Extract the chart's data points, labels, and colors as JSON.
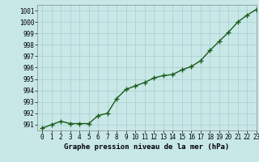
{
  "x": [
    0,
    1,
    2,
    3,
    4,
    5,
    6,
    7,
    8,
    9,
    10,
    11,
    12,
    13,
    14,
    15,
    16,
    17,
    18,
    19,
    20,
    21,
    22,
    23
  ],
  "y": [
    990.7,
    991.0,
    991.3,
    991.1,
    991.1,
    991.1,
    991.8,
    992.0,
    993.3,
    994.1,
    994.4,
    994.7,
    995.1,
    995.3,
    995.4,
    995.8,
    996.1,
    996.6,
    997.5,
    998.3,
    999.1,
    1000.0,
    1000.6,
    1001.1
  ],
  "line_color": "#1a5c1a",
  "marker_color": "#1a5c1a",
  "bg_color": "#c8e8e8",
  "grid_color": "#aacccc",
  "xlabel": "Graphe pression niveau de la mer (hPa)",
  "xlim": [
    -0.5,
    23
  ],
  "ylim": [
    990.5,
    1001.5
  ],
  "yticks": [
    991,
    992,
    993,
    994,
    995,
    996,
    997,
    998,
    999,
    1000,
    1001
  ],
  "xticks": [
    0,
    1,
    2,
    3,
    4,
    5,
    6,
    7,
    8,
    9,
    10,
    11,
    12,
    13,
    14,
    15,
    16,
    17,
    18,
    19,
    20,
    21,
    22,
    23
  ],
  "tick_fontsize": 5.5,
  "label_fontsize": 6.5,
  "line_width": 1.0,
  "marker_size": 4
}
